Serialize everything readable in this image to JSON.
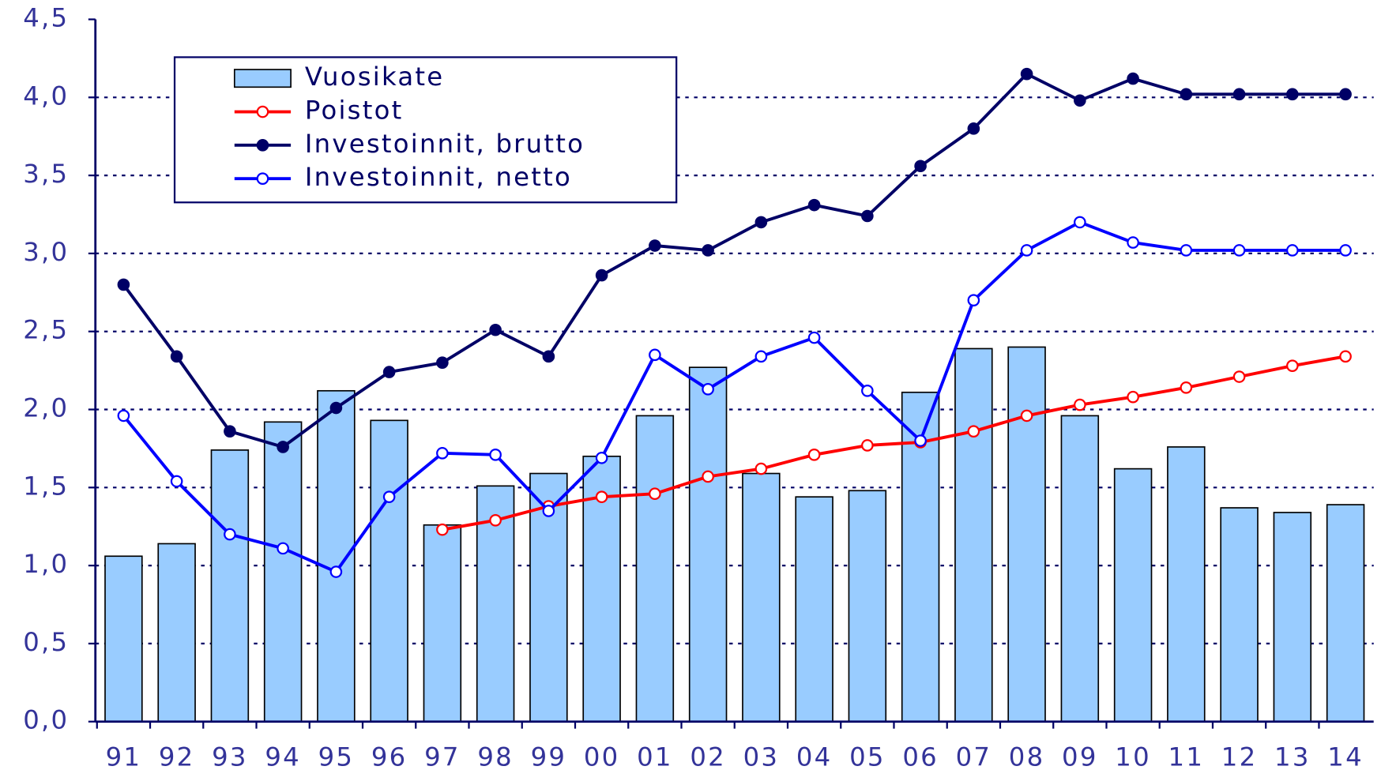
{
  "chart_data": {
    "type": "bar-line",
    "categories": [
      "91",
      "92",
      "93",
      "94",
      "95",
      "96",
      "97",
      "98",
      "99",
      "00",
      "01",
      "02",
      "03",
      "04",
      "05",
      "06",
      "07",
      "08",
      "09",
      "10",
      "11",
      "12",
      "13",
      "14"
    ],
    "series": [
      {
        "name": "Vuosikate",
        "type": "bar",
        "color": "#99ccff",
        "values": [
          1.06,
          1.14,
          1.74,
          1.92,
          2.12,
          1.93,
          1.26,
          1.51,
          1.59,
          1.7,
          1.96,
          2.27,
          1.59,
          1.44,
          1.48,
          2.11,
          2.39,
          2.4,
          1.96,
          1.62,
          1.76,
          1.37,
          1.34,
          1.39
        ]
      },
      {
        "name": "Poistot",
        "type": "line",
        "marker": "open",
        "color": "#ff0000",
        "values": [
          null,
          null,
          null,
          null,
          null,
          null,
          1.23,
          1.29,
          1.38,
          1.44,
          1.46,
          1.57,
          1.62,
          1.71,
          1.77,
          1.79,
          1.86,
          1.96,
          2.03,
          2.08,
          2.14,
          2.21,
          2.28,
          2.34
        ]
      },
      {
        "name": "Investoinnit, brutto",
        "type": "line",
        "marker": "filled",
        "color": "#000066",
        "values": [
          2.8,
          2.34,
          1.86,
          1.76,
          2.01,
          2.24,
          2.3,
          2.51,
          2.34,
          2.86,
          3.05,
          3.02,
          3.2,
          3.31,
          3.24,
          3.56,
          3.8,
          4.15,
          3.98,
          4.12,
          4.02,
          4.02,
          4.02,
          4.02
        ]
      },
      {
        "name": "Investoinnit, netto",
        "type": "line",
        "marker": "open",
        "color": "#0000ff",
        "values": [
          1.96,
          1.54,
          1.2,
          1.11,
          0.96,
          1.44,
          1.72,
          1.71,
          1.35,
          1.69,
          2.35,
          2.13,
          2.34,
          2.46,
          2.12,
          1.8,
          2.7,
          3.02,
          3.2,
          3.07,
          3.02,
          3.02,
          3.02,
          3.02
        ]
      }
    ],
    "ylim": [
      0,
      4.5
    ],
    "yticks": [
      {
        "value": 0,
        "label": "0,0"
      },
      {
        "value": 0.5,
        "label": "0,5"
      },
      {
        "value": 1,
        "label": "1,0"
      },
      {
        "value": 1.5,
        "label": "1,5"
      },
      {
        "value": 2,
        "label": "2,0"
      },
      {
        "value": 2.5,
        "label": "2,5"
      },
      {
        "value": 3,
        "label": "3,0"
      },
      {
        "value": 3.5,
        "label": "3,5"
      },
      {
        "value": 4,
        "label": "4,0"
      },
      {
        "value": 4.5,
        "label": "4,5"
      }
    ],
    "grid": true,
    "legend": "upper left"
  }
}
